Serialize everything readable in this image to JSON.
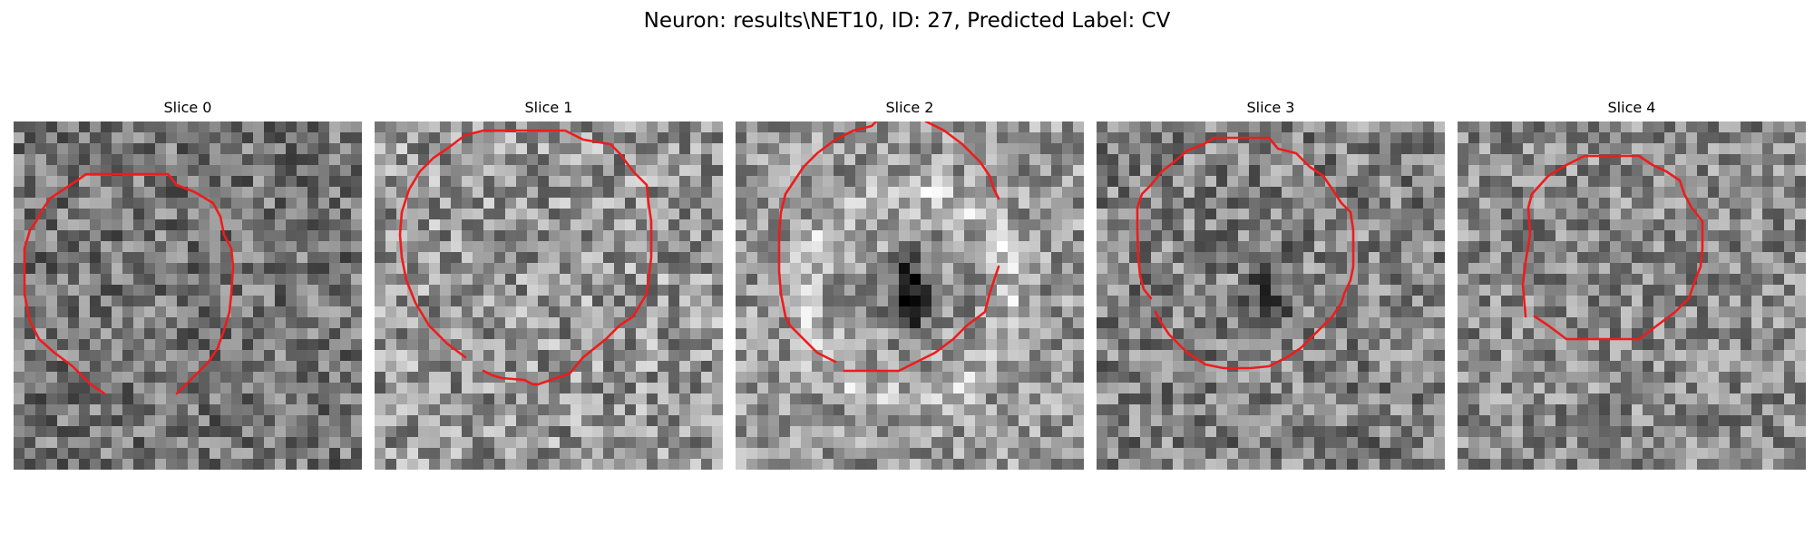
{
  "figure": {
    "title": "Neuron: results\\NET10, ID: 27, Predicted Label: CV",
    "contour_color": "#ee1c1c"
  },
  "panels": [
    {
      "title": "Slice 0"
    },
    {
      "title": "Slice 1"
    },
    {
      "title": "Slice 2"
    },
    {
      "title": "Slice 3"
    },
    {
      "title": "Slice 4"
    }
  ]
}
